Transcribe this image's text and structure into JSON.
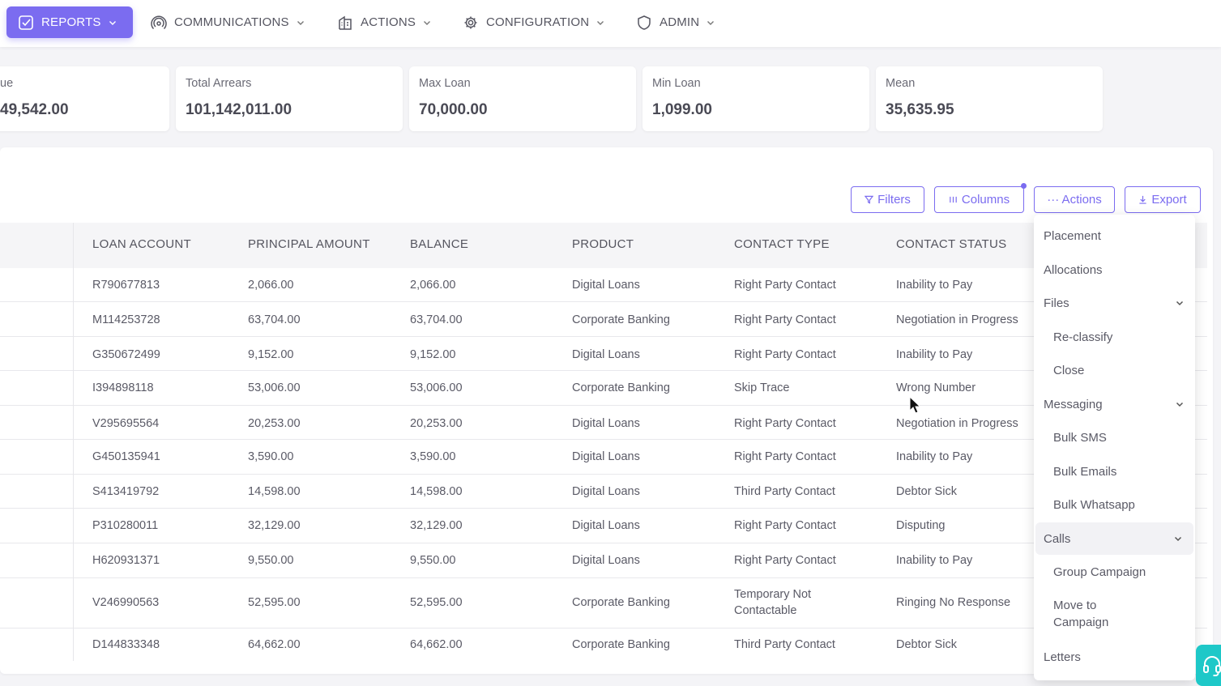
{
  "nav": [
    {
      "label": "REPORTS",
      "icon": "checkbox-icon",
      "active": true
    },
    {
      "label": "COMMUNICATIONS",
      "icon": "broadcast-icon"
    },
    {
      "label": "ACTIONS",
      "icon": "building-icon"
    },
    {
      "label": "CONFIGURATION",
      "icon": "gear-icon"
    },
    {
      "label": "ADMIN",
      "icon": "shield-icon"
    }
  ],
  "stats": [
    {
      "label": "ue",
      "value": "49,542.00"
    },
    {
      "label": "Total Arrears",
      "value": "101,142,011.00"
    },
    {
      "label": "Max Loan",
      "value": "70,000.00"
    },
    {
      "label": "Min Loan",
      "value": "1,099.00"
    },
    {
      "label": "Mean",
      "value": "35,635.95"
    }
  ],
  "toolbar": {
    "filters": "Filters",
    "columns": "Columns",
    "actions": "··· Actions",
    "export": "Export"
  },
  "table": {
    "headers": [
      "LOAN ACCOUNT",
      "PRINCIPAL AMOUNT",
      "BALANCE",
      "PRODUCT",
      "CONTACT TYPE",
      "CONTACT STATUS"
    ],
    "rows": [
      [
        "R790677813",
        "2,066.00",
        "2,066.00",
        "Digital Loans",
        "Right Party Contact",
        "Inability to Pay"
      ],
      [
        "M114253728",
        "63,704.00",
        "63,704.00",
        "Corporate Banking",
        "Right Party Contact",
        "Negotiation in Progress"
      ],
      [
        "G350672499",
        "9,152.00",
        "9,152.00",
        "Digital Loans",
        "Right Party Contact",
        "Inability to Pay"
      ],
      [
        "I394898118",
        "53,006.00",
        "53,006.00",
        "Corporate Banking",
        "Skip Trace",
        "Wrong Number"
      ],
      [
        "V295695564",
        "20,253.00",
        "20,253.00",
        "Digital Loans",
        "Right Party Contact",
        "Negotiation in Progress"
      ],
      [
        "G450135941",
        "3,590.00",
        "3,590.00",
        "Digital Loans",
        "Right Party Contact",
        "Inability to Pay"
      ],
      [
        "S413419792",
        "14,598.00",
        "14,598.00",
        "Digital Loans",
        "Third Party Contact",
        "Debtor Sick"
      ],
      [
        "P310280011",
        "32,129.00",
        "32,129.00",
        "Digital Loans",
        "Right Party Contact",
        "Disputing"
      ],
      [
        "H620931371",
        "9,550.00",
        "9,550.00",
        "Digital Loans",
        "Right Party Contact",
        "Inability to Pay"
      ],
      [
        "V246990563",
        "52,595.00",
        "52,595.00",
        "Corporate Banking",
        "Temporary Not Contactable",
        "Ringing No Response"
      ],
      [
        "D144833348",
        "64,662.00",
        "64,662.00",
        "Corporate Banking",
        "Third Party Contact",
        "Debtor Sick"
      ]
    ]
  },
  "actions_menu": [
    {
      "label": "Placement",
      "level": "top"
    },
    {
      "label": "Allocations",
      "level": "top"
    },
    {
      "label": "Files",
      "level": "top",
      "expandable": true
    },
    {
      "label": "Re-classify",
      "level": "sub"
    },
    {
      "label": "Close",
      "level": "sub"
    },
    {
      "label": "Messaging",
      "level": "top",
      "expandable": true
    },
    {
      "label": "Bulk SMS",
      "level": "sub"
    },
    {
      "label": "Bulk Emails",
      "level": "sub"
    },
    {
      "label": "Bulk Whatsapp",
      "level": "sub"
    },
    {
      "label": "Calls",
      "level": "top",
      "expandable": true,
      "highlighted": true
    },
    {
      "label": "Group Campaign",
      "level": "sub"
    },
    {
      "label": "Move to Campaign",
      "level": "sub"
    },
    {
      "label": "Letters",
      "level": "top"
    }
  ],
  "colors": {
    "accent": "#7b6cf0",
    "support": "#1ec8c8"
  }
}
